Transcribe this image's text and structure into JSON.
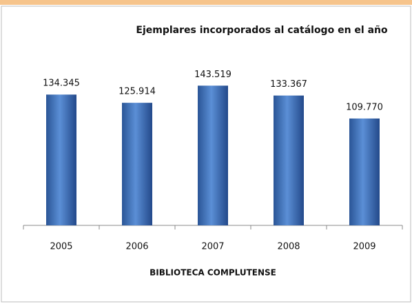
{
  "chart_data": {
    "type": "bar",
    "title": "Ejemplares incorporados al catálogo en el año",
    "x_label": "BIBLIOTECA COMPLUTENSE",
    "categories": [
      "2005",
      "2006",
      "2007",
      "2008",
      "2009"
    ],
    "values": [
      134345,
      125914,
      143519,
      133367,
      109770
    ],
    "value_labels": [
      "134.345",
      "125.914",
      "143.519",
      "133.367",
      "109.770"
    ],
    "color": "#3f6fb8",
    "ylim": [
      0,
      160000
    ]
  }
}
